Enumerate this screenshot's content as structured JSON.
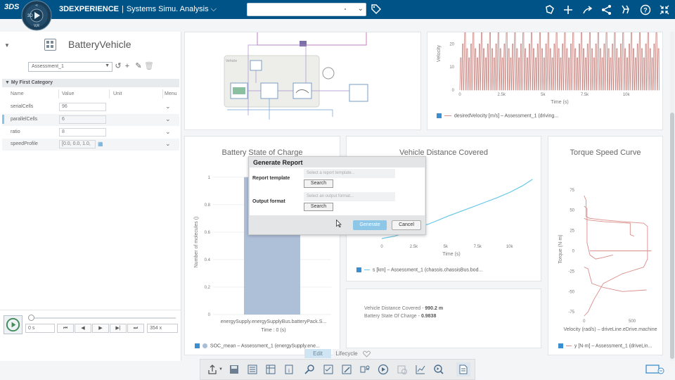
{
  "header": {
    "brand": "3DEXPERIENCE",
    "app_name": "Systems Simu. Analysis",
    "compass_letters": {
      "top": "3D",
      "middle": "V,R"
    },
    "search_placeholder": "",
    "accent_color": "#005386",
    "icons": [
      "tag-icon",
      "chat-icon",
      "plus-icon",
      "share-icon",
      "network-icon",
      "tools-icon",
      "help-icon",
      "collapse-icon"
    ]
  },
  "left_panel": {
    "model_title": "BatteryVehicle",
    "assessment_selected": "Assessment_1",
    "category_header": "My First Category",
    "columns": [
      "Name",
      "Value",
      "Unit",
      "Menu"
    ],
    "parameters": [
      {
        "name": "serialCells",
        "value": "96"
      },
      {
        "name": "parallelCells",
        "value": "6"
      },
      {
        "name": "ratio",
        "value": "8"
      },
      {
        "name": "speedProfile",
        "value": "[0.0, 0.0, 1.0,"
      }
    ],
    "time_value": "0 s",
    "speed_value": "354 x"
  },
  "velocity_chart": {
    "y_label": "Velocity",
    "legend": "desiredVelocity [m/s] – Assessment_1 (driving..."
  },
  "diagram": {
    "group_label": "Vehicle",
    "blocks": [
      "Driver",
      "Vehicle"
    ]
  },
  "charts": {
    "soc": {
      "title": "Battery State of Charge",
      "y_label": "Number of molecules ()",
      "x_tick": "energySupply.energySupplyBus.batteryPack.S...",
      "x_label": "Time : 0 (s)",
      "legend": "SOC_mean – Assessment_1 (energySupply.ene..."
    },
    "distance": {
      "title": "Vehicle Distance Covered",
      "x_label": "Time (s)",
      "legend": "s [km] – Assessment_1 (chassis.chassisBus.bod..."
    },
    "torque": {
      "title": "Torque Speed Curve",
      "y_label": "Torque (N·m)",
      "x_label": "Velocity (rad/s) – driveLine.eDrive.machine",
      "legend": "y [N·m] – Assessment_1 (driveLin..."
    },
    "summary": {
      "rows": [
        {
          "label": "Vehicle Distance Covered",
          "value": "990.2 m"
        },
        {
          "label": "Battery State Of Charge",
          "value": "0.9838"
        }
      ]
    }
  },
  "chart_data": [
    {
      "type": "line",
      "title": "",
      "ylabel": "Velocity",
      "xlabel": "Time (s)",
      "x_ticks": [
        "0",
        "2.5k",
        "5k",
        "7.5k",
        "10k"
      ],
      "y_ticks": [
        "0",
        "10",
        "20"
      ],
      "xlim": [
        0,
        12000
      ],
      "ylim": [
        0,
        25
      ],
      "series": [
        {
          "name": "desiredVelocity [m/s]",
          "pattern": "periodic repeated driving cycle",
          "peak": 25
        }
      ]
    },
    {
      "type": "bar",
      "title": "Battery State of Charge",
      "ylabel": "Number of molecules ()",
      "xlabel": "Time : 0 (s)",
      "categories": [
        "energySupply.energySupplyBus.batteryPack.S..."
      ],
      "values": [
        1.0
      ],
      "y_ticks": [
        "0",
        "0.2",
        "0.4",
        "0.6",
        "0.8",
        "1"
      ],
      "ylim": [
        0,
        1.05
      ]
    },
    {
      "type": "line",
      "title": "Vehicle Distance Covered",
      "xlabel": "Time (s)",
      "x_ticks": [
        "0",
        "2.5k",
        "5k",
        "7.5k",
        "10k"
      ],
      "xlim": [
        0,
        12000
      ],
      "ylim": [
        0,
        1000
      ],
      "series": [
        {
          "name": "s [km]",
          "x": [
            0,
            1000,
            2000,
            3000,
            4000,
            5000,
            6000,
            7000,
            8000,
            9000,
            10000,
            11000,
            11800
          ],
          "y": [
            0,
            40,
            110,
            190,
            270,
            360,
            440,
            520,
            600,
            680,
            770,
            880,
            990
          ]
        }
      ]
    },
    {
      "type": "line",
      "title": "Torque Speed Curve",
      "ylabel": "Torque (N·m)",
      "xlabel": "Velocity (rad/s) – driveLine.eDrive.machine",
      "x_ticks": [
        "0",
        "500"
      ],
      "y_ticks": [
        "75",
        "50",
        "25",
        "0",
        "-25",
        "-50",
        "-75"
      ],
      "xlim": [
        -50,
        800
      ],
      "ylim": [
        -80,
        80
      ],
      "series": [
        {
          "name": "y [N·m]",
          "pattern": "torque envelope loops"
        }
      ]
    }
  ],
  "dialog": {
    "title": "Generate Report",
    "report_template_label": "Report template",
    "report_template_placeholder": "Select a report template...",
    "output_format_label": "Output format",
    "output_format_placeholder": "Select an output format...",
    "search_label": "Search",
    "generate_label": "Generate",
    "cancel_label": "Cancel"
  },
  "bottom": {
    "tab_edit": "Edit",
    "tab_lifecycle": "Lifecycle"
  }
}
